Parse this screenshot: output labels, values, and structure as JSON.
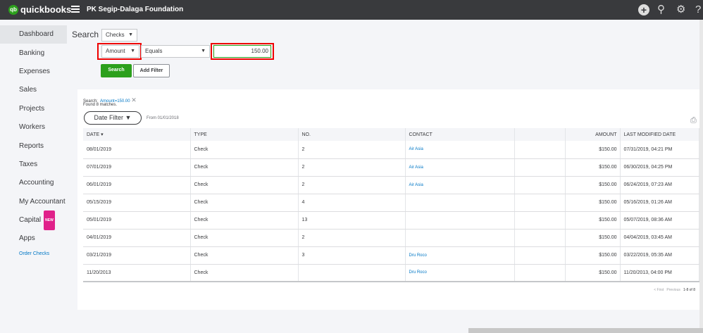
{
  "header": {
    "brand": "quickbooks",
    "brand_small": "intuit",
    "company": "PK Segip-Dalaga Foundation"
  },
  "sidebar": {
    "items": [
      {
        "label": "Dashboard"
      },
      {
        "label": "Banking"
      },
      {
        "label": "Expenses"
      },
      {
        "label": "Sales"
      },
      {
        "label": "Projects"
      },
      {
        "label": "Workers"
      },
      {
        "label": "Reports"
      },
      {
        "label": "Taxes"
      },
      {
        "label": "Accounting"
      },
      {
        "label": "My Accountant"
      },
      {
        "label": "Capital",
        "badge": "NEW"
      },
      {
        "label": "Apps"
      }
    ],
    "order_checks": "Order Checks"
  },
  "search": {
    "label": "Search",
    "type": "Checks",
    "field": "Amount",
    "operator": "Equals",
    "value": "150.00",
    "search_button": "Search",
    "add_filter_button": "Add Filter"
  },
  "results": {
    "search_prefix": "Search:",
    "search_term": "Amount=150.00",
    "found": "Found 8 matches.",
    "date_filter": "Date Filter",
    "from": "From 01/01/2018",
    "columns": [
      "DATE",
      "TYPE",
      "NO.",
      "CONTACT",
      "",
      "AMOUNT",
      "LAST MODIFIED DATE"
    ],
    "rows": [
      [
        "08/01/2019",
        "Check",
        "2",
        "Air Asia",
        "",
        "$150.00",
        "07/31/2019, 04:21 PM"
      ],
      [
        "07/01/2019",
        "Check",
        "2",
        "Air Asia",
        "",
        "$150.00",
        "06/30/2019, 04:25 PM"
      ],
      [
        "06/01/2019",
        "Check",
        "2",
        "Air Asia",
        "",
        "$150.00",
        "06/24/2019, 07:23 AM"
      ],
      [
        "05/15/2019",
        "Check",
        "4",
        "",
        "",
        "$150.00",
        "05/16/2019, 01:26 AM"
      ],
      [
        "05/01/2019",
        "Check",
        "13",
        "",
        "",
        "$150.00",
        "05/07/2019, 08:36 AM"
      ],
      [
        "04/01/2019",
        "Check",
        "2",
        "",
        "",
        "$150.00",
        "04/04/2019, 03:45 AM"
      ],
      [
        "03/21/2019",
        "Check",
        "3",
        "Dru Roco",
        "",
        "$150.00",
        "03/22/2019, 05:35 AM"
      ],
      [
        "11/20/2013",
        "Check",
        "",
        "Dru Roco",
        "",
        "$150.00",
        "11/20/2013, 04:00 PM"
      ]
    ],
    "pager": {
      "first": "< First",
      "previous": "Previous",
      "range": "1-8 of 8"
    }
  },
  "colors": {
    "topbar": "#393a3d",
    "green": "#2ca01c",
    "link": "#0077c5",
    "highlight": "#e00000"
  }
}
